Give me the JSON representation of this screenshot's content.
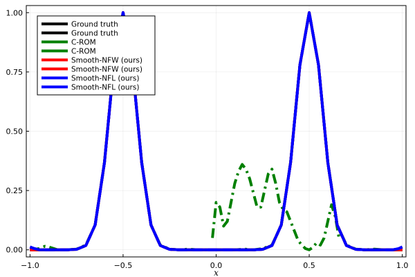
{
  "chart_data": {
    "type": "line",
    "title": "",
    "xlabel": "x",
    "ylabel": "",
    "xlim": [
      -1.02,
      1.02
    ],
    "ylim": [
      -0.03,
      1.03
    ],
    "x_ticks": [
      {
        "value": -1.0,
        "label": "−1.0"
      },
      {
        "value": -0.5,
        "label": "−0.5"
      },
      {
        "value": 0.0,
        "label": "0.0"
      },
      {
        "value": 0.5,
        "label": "0.5"
      },
      {
        "value": 1.0,
        "label": "1.0"
      }
    ],
    "y_ticks": [
      {
        "value": 0.0,
        "label": "0.00"
      },
      {
        "value": 0.25,
        "label": "0.25"
      },
      {
        "value": 0.5,
        "label": "0.50"
      },
      {
        "value": 0.75,
        "label": "0.75"
      },
      {
        "value": 1.0,
        "label": "1.00"
      }
    ],
    "grid": true,
    "legend_position": "top-left",
    "series": [
      {
        "name": "Ground truth",
        "color": "#000000",
        "style": "solid",
        "x": [
          -1.0,
          -0.95,
          -0.9,
          -0.85,
          -0.8,
          -0.75,
          -0.7,
          -0.65,
          -0.6,
          -0.55,
          -0.5,
          -0.45,
          -0.4,
          -0.35,
          -0.3,
          -0.25,
          -0.2,
          -0.15,
          -0.1,
          -0.05,
          0.0,
          0.05,
          0.1,
          0.15,
          0.2,
          0.25,
          0.3,
          0.35,
          0.4,
          0.45,
          0.5,
          0.55,
          0.6,
          0.65,
          0.7,
          0.75,
          0.8,
          0.85,
          0.9,
          0.95,
          1.0
        ],
        "y": [
          0.0,
          0.0,
          0.0,
          0.0,
          0.0,
          0.002,
          0.018,
          0.105,
          0.368,
          0.779,
          1.0,
          0.779,
          0.368,
          0.105,
          0.018,
          0.002,
          0.0,
          0.0,
          0.0,
          0.0,
          0.0,
          0.0,
          0.0,
          0.0,
          0.0,
          0.002,
          0.018,
          0.105,
          0.368,
          0.779,
          1.0,
          0.779,
          0.368,
          0.105,
          0.018,
          0.002,
          0.0,
          0.0,
          0.0,
          0.0,
          0.0
        ]
      },
      {
        "name": "Ground truth",
        "color": "#000000",
        "style": "dash",
        "x": [
          -1.0,
          -0.95,
          -0.9,
          -0.85,
          -0.8,
          -0.75,
          -0.7,
          -0.65,
          -0.6,
          -0.55,
          -0.5,
          -0.45,
          -0.4,
          -0.35,
          -0.3,
          -0.25,
          -0.2,
          -0.15,
          -0.1,
          -0.05,
          0.0,
          0.05,
          0.1,
          0.15,
          0.2,
          0.25,
          0.3,
          0.35,
          0.4,
          0.45,
          0.5,
          0.55,
          0.6,
          0.65,
          0.7,
          0.75,
          0.8,
          0.85,
          0.9,
          0.95,
          1.0
        ],
        "y": [
          0.0,
          0.0,
          0.0,
          0.0,
          0.0,
          0.002,
          0.018,
          0.105,
          0.368,
          0.779,
          1.0,
          0.779,
          0.368,
          0.105,
          0.018,
          0.002,
          0.0,
          0.0,
          0.0,
          0.0,
          0.0,
          0.0,
          0.0,
          0.0,
          0.0,
          0.002,
          0.018,
          0.105,
          0.368,
          0.779,
          1.0,
          0.779,
          0.368,
          0.105,
          0.018,
          0.002,
          0.0,
          0.0,
          0.0,
          0.0,
          0.0
        ]
      },
      {
        "name": "C-ROM",
        "color": "#008000",
        "style": "dashdot",
        "x": [
          -1.0,
          -0.95,
          -0.92,
          -0.9,
          -0.85,
          -0.8,
          -0.75,
          -0.7,
          -0.65,
          -0.6,
          -0.55,
          -0.5,
          -0.45,
          -0.4,
          -0.35,
          -0.3,
          -0.25,
          -0.2,
          -0.15,
          -0.1,
          -0.05,
          0.0,
          0.05,
          0.1,
          0.15,
          0.2,
          0.25,
          0.3,
          0.35,
          0.4,
          0.45,
          0.5,
          0.55,
          0.6,
          0.65,
          0.7,
          0.75,
          0.8,
          0.85,
          0.9,
          0.95,
          1.0
        ],
        "y": [
          0.0,
          0.005,
          0.015,
          0.012,
          0.0,
          0.0,
          0.003,
          0.02,
          0.105,
          0.37,
          0.78,
          1.0,
          0.78,
          0.37,
          0.105,
          0.02,
          0.003,
          0.0,
          0.003,
          0.0,
          0.0,
          0.0,
          0.0,
          0.0,
          0.003,
          0.0,
          0.005,
          0.02,
          0.105,
          0.37,
          0.78,
          1.0,
          0.78,
          0.37,
          0.105,
          0.02,
          0.003,
          0.0,
          0.003,
          0.0,
          0.0,
          0.0
        ]
      },
      {
        "name": "C-ROM",
        "color": "#008000",
        "style": "dashdot",
        "x": [
          -0.02,
          0.0,
          0.02,
          0.04,
          0.06,
          0.08,
          0.1,
          0.12,
          0.14,
          0.16,
          0.18,
          0.2,
          0.22,
          0.24,
          0.26,
          0.28,
          0.3,
          0.32,
          0.34,
          0.36,
          0.38,
          0.4,
          0.42,
          0.44,
          0.46,
          0.48,
          0.5,
          0.52,
          0.54,
          0.56,
          0.58,
          0.6,
          0.62,
          0.64,
          0.66
        ],
        "y": [
          0.05,
          0.2,
          0.18,
          0.1,
          0.12,
          0.2,
          0.28,
          0.33,
          0.36,
          0.34,
          0.3,
          0.24,
          0.18,
          0.18,
          0.25,
          0.32,
          0.34,
          0.28,
          0.2,
          0.17,
          0.16,
          0.12,
          0.08,
          0.04,
          0.02,
          0.005,
          0.0,
          0.01,
          0.03,
          0.02,
          0.05,
          0.12,
          0.19,
          0.14,
          0.05
        ]
      },
      {
        "name": "Smooth-NFW (ours)",
        "color": "#ff0000",
        "style": "solid",
        "x": [
          -1.0,
          -0.95,
          -0.9,
          -0.85,
          -0.8,
          -0.75,
          -0.7,
          -0.65,
          -0.6,
          -0.55,
          -0.5,
          -0.45,
          -0.4,
          -0.35,
          -0.3,
          -0.25,
          -0.2,
          -0.15,
          -0.1,
          -0.05,
          0.0,
          0.05,
          0.1,
          0.15,
          0.2,
          0.25,
          0.3,
          0.35,
          0.4,
          0.45,
          0.5,
          0.55,
          0.6,
          0.65,
          0.7,
          0.75,
          0.8,
          0.85,
          0.9,
          0.95,
          1.0
        ],
        "y": [
          0.0,
          0.0,
          0.0,
          0.0,
          0.0,
          0.002,
          0.018,
          0.105,
          0.368,
          0.779,
          1.0,
          0.779,
          0.368,
          0.105,
          0.018,
          0.002,
          0.0,
          0.0,
          0.0,
          0.0,
          0.0,
          0.0,
          0.0,
          0.0,
          0.0,
          0.002,
          0.018,
          0.105,
          0.368,
          0.779,
          1.0,
          0.779,
          0.368,
          0.105,
          0.018,
          0.002,
          0.0,
          0.0,
          0.0,
          0.0,
          0.0
        ]
      },
      {
        "name": "Smooth-NFW (ours)",
        "color": "#ff0000",
        "style": "dash",
        "x": [
          -1.0,
          -0.95,
          -0.9,
          -0.85,
          -0.8,
          -0.75,
          -0.7,
          -0.65,
          -0.6,
          -0.55,
          -0.5,
          -0.45,
          -0.4,
          -0.35,
          -0.3,
          -0.25,
          -0.2,
          -0.15,
          -0.1,
          -0.05,
          0.0,
          0.05,
          0.1,
          0.15,
          0.2,
          0.25,
          0.3,
          0.35,
          0.4,
          0.45,
          0.5,
          0.55,
          0.6,
          0.65,
          0.7,
          0.75,
          0.8,
          0.85,
          0.9,
          0.95,
          1.0
        ],
        "y": [
          0.0,
          0.0,
          0.0,
          0.0,
          0.0,
          0.002,
          0.018,
          0.105,
          0.368,
          0.779,
          1.0,
          0.779,
          0.368,
          0.105,
          0.018,
          0.002,
          0.0,
          0.0,
          0.0,
          0.0,
          0.0,
          0.0,
          0.0,
          0.0,
          0.0,
          0.002,
          0.018,
          0.105,
          0.368,
          0.779,
          1.0,
          0.779,
          0.368,
          0.105,
          0.018,
          0.002,
          0.0,
          0.0,
          0.0,
          0.0,
          0.0
        ]
      },
      {
        "name": "Smooth-NFL (ours)",
        "color": "#0000ff",
        "style": "solid",
        "x": [
          -1.0,
          -0.98,
          -0.95,
          -0.9,
          -0.85,
          -0.8,
          -0.75,
          -0.7,
          -0.65,
          -0.6,
          -0.55,
          -0.5,
          -0.45,
          -0.4,
          -0.35,
          -0.3,
          -0.25,
          -0.2,
          -0.15,
          -0.1,
          -0.05,
          0.0,
          0.05,
          0.1,
          0.15,
          0.2,
          0.25,
          0.3,
          0.35,
          0.4,
          0.45,
          0.5,
          0.55,
          0.6,
          0.65,
          0.7,
          0.75,
          0.8,
          0.85,
          0.9,
          0.95,
          0.98,
          1.0
        ],
        "y": [
          0.012,
          0.006,
          0.0,
          0.0,
          0.0,
          0.0,
          0.002,
          0.018,
          0.105,
          0.368,
          0.779,
          1.0,
          0.779,
          0.368,
          0.105,
          0.018,
          0.002,
          0.0,
          0.0,
          0.0,
          0.0,
          0.0,
          0.0,
          0.0,
          0.0,
          0.0,
          0.002,
          0.018,
          0.105,
          0.368,
          0.779,
          1.0,
          0.779,
          0.368,
          0.105,
          0.018,
          0.002,
          0.0,
          0.0,
          0.0,
          0.0,
          0.005,
          0.012
        ]
      },
      {
        "name": "Smooth-NFL (ours)",
        "color": "#0000ff",
        "style": "dash",
        "x": [
          -1.0,
          -0.98,
          -0.95,
          -0.9,
          -0.85,
          -0.8,
          -0.75,
          -0.7,
          -0.65,
          -0.6,
          -0.55,
          -0.5,
          -0.45,
          -0.4,
          -0.35,
          -0.3,
          -0.25,
          -0.2,
          -0.15,
          -0.1,
          -0.05,
          0.0,
          0.05,
          0.1,
          0.15,
          0.2,
          0.25,
          0.3,
          0.35,
          0.4,
          0.45,
          0.5,
          0.55,
          0.6,
          0.65,
          0.7,
          0.75,
          0.8,
          0.85,
          0.9,
          0.95,
          0.98,
          1.0
        ],
        "y": [
          0.012,
          0.006,
          0.0,
          0.0,
          0.0,
          0.0,
          0.002,
          0.018,
          0.105,
          0.368,
          0.779,
          1.0,
          0.779,
          0.368,
          0.105,
          0.018,
          0.002,
          0.0,
          0.0,
          0.0,
          0.0,
          0.0,
          0.0,
          0.0,
          0.0,
          0.0,
          0.002,
          0.018,
          0.105,
          0.368,
          0.779,
          1.0,
          0.779,
          0.368,
          0.105,
          0.018,
          0.002,
          0.0,
          0.0,
          0.0,
          0.0,
          0.005,
          0.012
        ]
      }
    ]
  }
}
